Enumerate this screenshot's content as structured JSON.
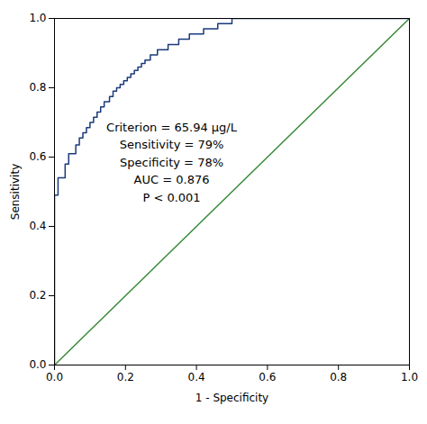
{
  "chart_data": {
    "type": "line",
    "xlabel": "1 - Specificity",
    "ylabel": "Sensitivity",
    "series": [
      {
        "color": "#3a8a3a",
        "x": [
          0.0,
          1.0
        ],
        "values": [
          0.0,
          1.0
        ]
      },
      {
        "color": "#1a3a7a",
        "x": [
          0.0,
          0.0,
          0.01,
          0.01,
          0.03,
          0.03,
          0.04,
          0.04,
          0.06,
          0.06,
          0.07,
          0.07,
          0.08,
          0.08,
          0.09,
          0.09,
          0.1,
          0.1,
          0.11,
          0.11,
          0.12,
          0.12,
          0.13,
          0.13,
          0.14,
          0.14,
          0.155,
          0.155,
          0.165,
          0.165,
          0.175,
          0.175,
          0.185,
          0.185,
          0.195,
          0.195,
          0.205,
          0.205,
          0.215,
          0.215,
          0.225,
          0.225,
          0.235,
          0.235,
          0.245,
          0.245,
          0.255,
          0.255,
          0.27,
          0.27,
          0.29,
          0.29,
          0.32,
          0.32,
          0.35,
          0.35,
          0.38,
          0.38,
          0.42,
          0.42,
          0.46,
          0.46,
          0.5,
          0.5,
          0.54,
          0.54,
          1.0
        ],
        "values": [
          0.0,
          0.49,
          0.49,
          0.54,
          0.54,
          0.58,
          0.58,
          0.61,
          0.61,
          0.635,
          0.635,
          0.655,
          0.655,
          0.67,
          0.67,
          0.685,
          0.685,
          0.7,
          0.7,
          0.715,
          0.715,
          0.73,
          0.73,
          0.745,
          0.745,
          0.76,
          0.76,
          0.775,
          0.775,
          0.79,
          0.79,
          0.8,
          0.8,
          0.81,
          0.81,
          0.82,
          0.82,
          0.83,
          0.83,
          0.84,
          0.84,
          0.85,
          0.85,
          0.86,
          0.86,
          0.87,
          0.87,
          0.88,
          0.88,
          0.895,
          0.895,
          0.91,
          0.91,
          0.925,
          0.925,
          0.94,
          0.94,
          0.955,
          0.955,
          0.97,
          0.97,
          0.985,
          0.985,
          1.0,
          1.0,
          1.0,
          1.0
        ]
      }
    ],
    "annotations": [
      {
        "text": "Criterion = 65.94 μg/L\nSensitivity = 79%\nSpecificity = 78%\nAUC = 0.876\nP < 0.001",
        "x": 0.33,
        "y": 0.71
      }
    ],
    "xlim": [
      0.0,
      1.0
    ],
    "ylim": [
      0.0,
      1.0
    ],
    "xticks": [
      {
        "value": 0.0,
        "label": "0.0"
      },
      0.2,
      0.4,
      0.6,
      0.8,
      {
        "value": 1.0,
        "label": "1.0"
      }
    ],
    "yticks": [
      {
        "value": 0.0,
        "label": "0.0"
      },
      0.2,
      0.4,
      0.6,
      0.8,
      {
        "value": 1.0,
        "label": "1.0"
      }
    ],
    "grid": false
  }
}
